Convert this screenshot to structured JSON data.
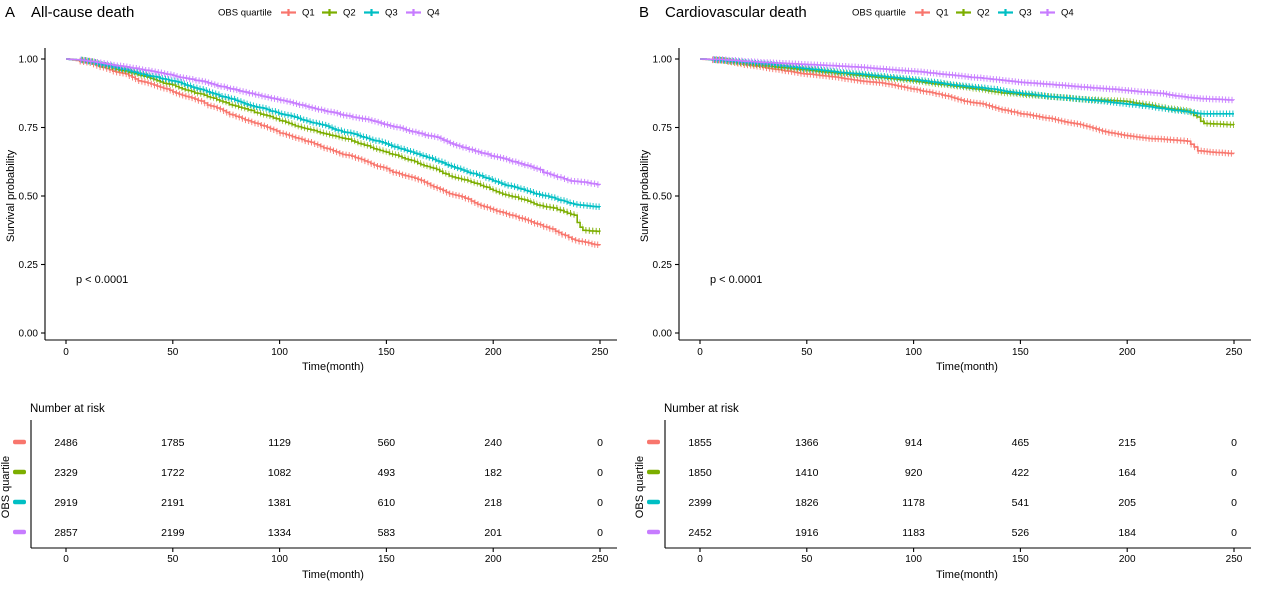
{
  "figure": {
    "background": "#ffffff",
    "palette": {
      "q1": "#F8766D",
      "q2": "#7CAE00",
      "q3": "#00BFC4",
      "q4": "#C77CFF"
    }
  },
  "chart_data": [
    {
      "type": "line",
      "subtype": "kaplan-meier",
      "panel_label": "A",
      "title": "All-cause death",
      "xlabel": "Time(month)",
      "ylabel": "Survival probability",
      "legend_title": "OBS quartile",
      "legend_position": "top",
      "grid": false,
      "xlim": [
        0,
        250
      ],
      "ylim": [
        0,
        1
      ],
      "xticks": [
        0,
        50,
        100,
        150,
        200,
        250
      ],
      "yticks": [
        "0.00",
        "0.25",
        "0.50",
        "0.75",
        "1.00"
      ],
      "pvalue": "p < 0.0001",
      "series": [
        {
          "name": "Q1",
          "color": "#F8766D",
          "t": [
            0,
            8,
            25,
            50,
            75,
            100,
            125,
            150,
            175,
            200,
            212,
            222,
            232,
            240,
            246,
            250
          ],
          "s": [
            1.0,
            0.99,
            0.95,
            0.88,
            0.805,
            0.73,
            0.665,
            0.6,
            0.525,
            0.45,
            0.42,
            0.395,
            0.36,
            0.335,
            0.325,
            0.32
          ]
        },
        {
          "name": "Q2",
          "color": "#7CAE00",
          "t": [
            0,
            8,
            25,
            50,
            75,
            100,
            125,
            150,
            175,
            200,
            212,
            222,
            230,
            238,
            242,
            250
          ],
          "s": [
            1.0,
            0.995,
            0.96,
            0.905,
            0.84,
            0.775,
            0.72,
            0.66,
            0.59,
            0.52,
            0.49,
            0.465,
            0.45,
            0.43,
            0.375,
            0.37
          ]
        },
        {
          "name": "Q3",
          "color": "#00BFC4",
          "t": [
            0,
            8,
            25,
            50,
            75,
            100,
            125,
            150,
            175,
            200,
            215,
            225,
            235,
            243,
            250
          ],
          "s": [
            1.0,
            0.995,
            0.965,
            0.92,
            0.86,
            0.8,
            0.745,
            0.69,
            0.625,
            0.555,
            0.52,
            0.5,
            0.475,
            0.465,
            0.46
          ]
        },
        {
          "name": "Q4",
          "color": "#C77CFF",
          "t": [
            0,
            8,
            25,
            50,
            75,
            100,
            125,
            150,
            175,
            200,
            210,
            220,
            228,
            236,
            250
          ],
          "s": [
            1.0,
            0.995,
            0.975,
            0.94,
            0.895,
            0.85,
            0.805,
            0.76,
            0.71,
            0.645,
            0.625,
            0.6,
            0.575,
            0.555,
            0.54
          ]
        }
      ],
      "risk_table": {
        "title": "Number at risk",
        "ylabel": "OBS quartile",
        "xlabel": "Time(month)",
        "times": [
          0,
          50,
          100,
          150,
          200,
          250
        ],
        "rows": [
          {
            "name": "Q1",
            "color": "#F8766D",
            "values": [
              2486,
              1785,
              1129,
              560,
              240,
              0
            ]
          },
          {
            "name": "Q2",
            "color": "#7CAE00",
            "values": [
              2329,
              1722,
              1082,
              493,
              182,
              0
            ]
          },
          {
            "name": "Q3",
            "color": "#00BFC4",
            "values": [
              2919,
              2191,
              1381,
              610,
              218,
              0
            ]
          },
          {
            "name": "Q4",
            "color": "#C77CFF",
            "values": [
              2857,
              2199,
              1334,
              583,
              201,
              0
            ]
          }
        ]
      }
    },
    {
      "type": "line",
      "subtype": "kaplan-meier",
      "panel_label": "B",
      "title": "Cardiovascular death",
      "xlabel": "Time(month)",
      "ylabel": "Survival probability",
      "legend_title": "OBS quartile",
      "legend_position": "top",
      "grid": false,
      "xlim": [
        0,
        250
      ],
      "ylim": [
        0,
        1
      ],
      "xticks": [
        0,
        50,
        100,
        150,
        200,
        250
      ],
      "yticks": [
        "0.00",
        "0.25",
        "0.50",
        "0.75",
        "1.00"
      ],
      "pvalue": "p < 0.0001",
      "series": [
        {
          "name": "Q1",
          "color": "#F8766D",
          "t": [
            0,
            10,
            25,
            50,
            75,
            100,
            125,
            150,
            175,
            200,
            210,
            220,
            228,
            233,
            240,
            250
          ],
          "s": [
            1.0,
            0.995,
            0.975,
            0.945,
            0.92,
            0.89,
            0.845,
            0.8,
            0.765,
            0.72,
            0.71,
            0.705,
            0.7,
            0.665,
            0.66,
            0.655
          ]
        },
        {
          "name": "Q2",
          "color": "#7CAE00",
          "t": [
            0,
            10,
            25,
            50,
            75,
            100,
            125,
            150,
            175,
            200,
            215,
            228,
            236,
            250
          ],
          "s": [
            1.0,
            0.995,
            0.98,
            0.96,
            0.94,
            0.92,
            0.895,
            0.87,
            0.855,
            0.845,
            0.825,
            0.81,
            0.765,
            0.76
          ]
        },
        {
          "name": "Q3",
          "color": "#00BFC4",
          "t": [
            0,
            10,
            25,
            50,
            75,
            100,
            125,
            150,
            175,
            200,
            220,
            235,
            250
          ],
          "s": [
            1.0,
            0.995,
            0.985,
            0.965,
            0.945,
            0.925,
            0.9,
            0.875,
            0.855,
            0.835,
            0.815,
            0.8,
            0.8
          ]
        },
        {
          "name": "Q4",
          "color": "#C77CFF",
          "t": [
            0,
            10,
            25,
            50,
            75,
            100,
            125,
            150,
            175,
            200,
            215,
            228,
            235,
            250
          ],
          "s": [
            1.0,
            0.998,
            0.99,
            0.98,
            0.97,
            0.955,
            0.935,
            0.915,
            0.9,
            0.885,
            0.875,
            0.86,
            0.855,
            0.85
          ]
        }
      ],
      "risk_table": {
        "title": "Number at risk",
        "ylabel": "OBS quartile",
        "xlabel": "Time(month)",
        "times": [
          0,
          50,
          100,
          150,
          200,
          250
        ],
        "rows": [
          {
            "name": "Q1",
            "color": "#F8766D",
            "values": [
              1855,
              1366,
              914,
              465,
              215,
              0
            ]
          },
          {
            "name": "Q2",
            "color": "#7CAE00",
            "values": [
              1850,
              1410,
              920,
              422,
              164,
              0
            ]
          },
          {
            "name": "Q3",
            "color": "#00BFC4",
            "values": [
              2399,
              1826,
              1178,
              541,
              205,
              0
            ]
          },
          {
            "name": "Q4",
            "color": "#C77CFF",
            "values": [
              2452,
              1916,
              1183,
              526,
              184,
              0
            ]
          }
        ]
      }
    }
  ]
}
